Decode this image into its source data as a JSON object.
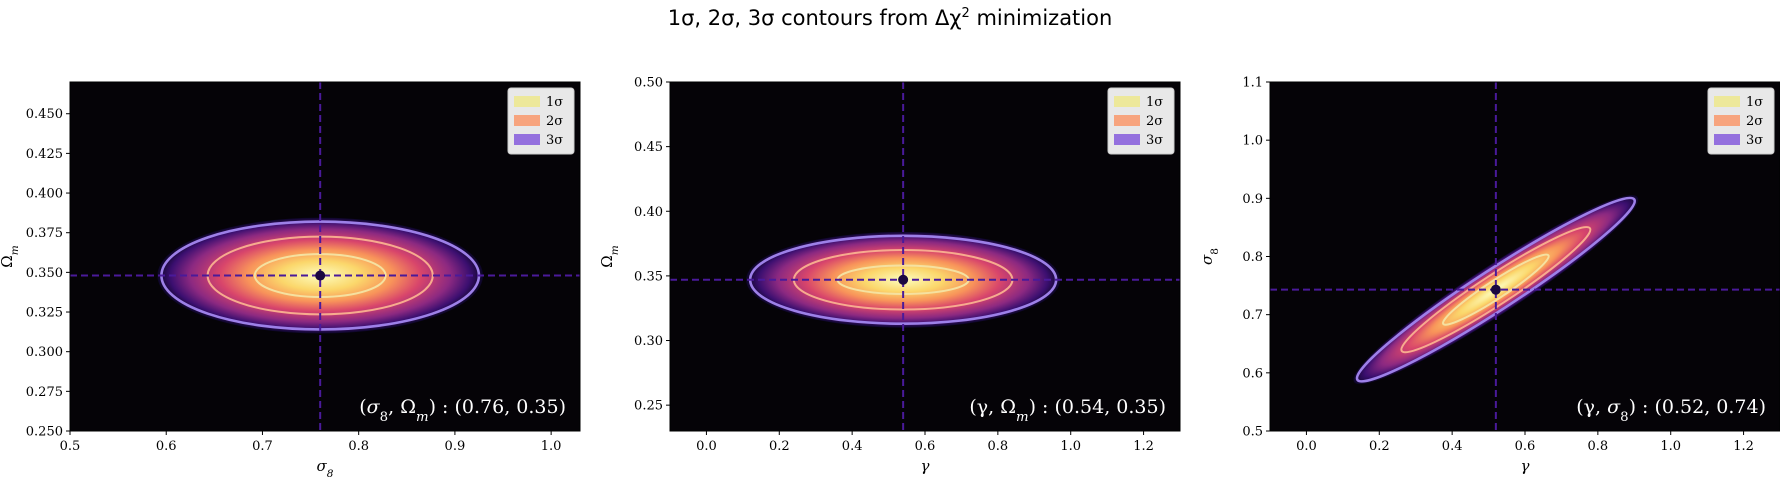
{
  "figure": {
    "title_prefix": "1σ, 2σ, 3σ contours from Δχ",
    "title_sup": "2",
    "title_suffix": " minimization"
  },
  "legend": [
    "1σ",
    "2σ",
    "3σ"
  ],
  "colors": {
    "background": "#050307",
    "sigma1_line": "#f5e1a0",
    "sigma2_line": "#f7ab8e",
    "sigma3_line": "#9d80e8",
    "legend_1sigma": "#ede89a",
    "legend_2sigma": "#f7a47e",
    "legend_3sigma": "#9470de",
    "marker_line": "#4a1a9a",
    "best_fit_point": "#1a0840"
  },
  "chart_data": [
    {
      "type": "contour",
      "x_label": "σ8",
      "y_label": "Ωm",
      "x_range": [
        0.5,
        1.03
      ],
      "y_range": [
        0.25,
        0.47
      ],
      "x_ticks": [
        "0.5",
        "0.6",
        "0.7",
        "0.8",
        "0.9",
        "1.0"
      ],
      "y_ticks": [
        "0.250",
        "0.275",
        "0.300",
        "0.325",
        "0.350",
        "0.375",
        "0.400",
        "0.425",
        "0.450"
      ],
      "best_fit": {
        "x": 0.76,
        "y": 0.348
      },
      "best_fit_label": "(σ8, Ωm) : (0.76, 0.35)",
      "contours": [
        {
          "level": "1σ",
          "half_width_x": 0.068,
          "half_width_y": 0.0135,
          "tilt": 0
        },
        {
          "level": "2σ",
          "half_width_x": 0.117,
          "half_width_y": 0.0245,
          "tilt": 0
        },
        {
          "level": "3σ",
          "half_width_x": 0.165,
          "half_width_y": 0.034,
          "tilt": 0
        }
      ],
      "legend_position": "upper right",
      "grid": false
    },
    {
      "type": "contour",
      "x_label": "γ",
      "y_label": "Ωm",
      "x_range": [
        -0.1,
        1.3
      ],
      "y_range": [
        0.23,
        0.5
      ],
      "x_ticks": [
        "0.0",
        "0.2",
        "0.4",
        "0.6",
        "0.8",
        "1.0",
        "1.2"
      ],
      "y_ticks": [
        "0.25",
        "0.30",
        "0.35",
        "0.40",
        "0.45",
        "0.50"
      ],
      "best_fit": {
        "x": 0.54,
        "y": 0.347
      },
      "best_fit_label": "(γ, Ωm) : (0.54, 0.35)",
      "contours": [
        {
          "level": "1σ",
          "half_width_x": 0.18,
          "half_width_y": 0.011,
          "tilt": 0
        },
        {
          "level": "2σ",
          "half_width_x": 0.3,
          "half_width_y": 0.023,
          "tilt": 0
        },
        {
          "level": "3σ",
          "half_width_x": 0.42,
          "half_width_y": 0.034,
          "tilt": 0
        }
      ],
      "legend_position": "upper right",
      "grid": false
    },
    {
      "type": "contour",
      "x_label": "γ",
      "y_label": "σ8",
      "x_range": [
        -0.1,
        1.3
      ],
      "y_range": [
        0.5,
        1.1
      ],
      "x_ticks": [
        "0.0",
        "0.2",
        "0.4",
        "0.6",
        "0.8",
        "1.0",
        "1.2"
      ],
      "y_ticks": [
        "0.5",
        "0.6",
        "0.7",
        "0.8",
        "0.9",
        "1.0",
        "1.1"
      ],
      "best_fit": {
        "x": 0.52,
        "y": 0.743
      },
      "best_fit_label": "(γ, σ8) : (0.52, 0.74)",
      "contours": [
        {
          "level": "1σ",
          "half_width_x": 0.17,
          "half_width_y": 0.028,
          "tilt": 0.45
        },
        {
          "level": "2σ",
          "half_width_x": 0.29,
          "half_width_y": 0.05,
          "tilt": 0.45
        },
        {
          "level": "3σ",
          "half_width_x": 0.41,
          "half_width_y": 0.07,
          "tilt": 0.45
        }
      ],
      "legend_position": "upper right",
      "grid": false
    }
  ]
}
